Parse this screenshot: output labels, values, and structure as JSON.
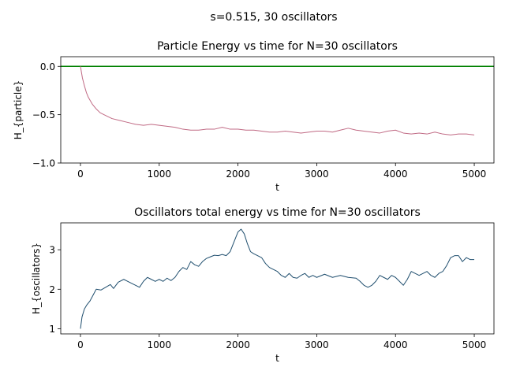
{
  "figure": {
    "suptitle": "s=0.515, 30 oscillators"
  },
  "chart_data": [
    {
      "type": "line",
      "title": "Particle Energy vs time for N=30 oscillators",
      "xlabel": "t",
      "ylabel": "H_{particle}",
      "xlim": [
        -250,
        5250
      ],
      "ylim": [
        -1.0,
        0.1
      ],
      "xticks": [
        0,
        1000,
        2000,
        3000,
        4000,
        5000
      ],
      "yticks": [
        -1.0,
        -0.5,
        0.0
      ],
      "ytick_labels": [
        "−1.0",
        "−0.5",
        "0.0"
      ],
      "grid": false,
      "reference_line": {
        "y": 0.0,
        "color": "#008000"
      },
      "series": [
        {
          "color": "#c06a84",
          "x": [
            0,
            25,
            50,
            75,
            100,
            150,
            200,
            250,
            300,
            400,
            500,
            600,
            700,
            800,
            900,
            1000,
            1100,
            1200,
            1300,
            1400,
            1500,
            1600,
            1700,
            1800,
            1900,
            2000,
            2100,
            2200,
            2300,
            2400,
            2500,
            2600,
            2700,
            2800,
            2900,
            3000,
            3100,
            3200,
            3300,
            3400,
            3500,
            3600,
            3700,
            3800,
            3900,
            4000,
            4100,
            4200,
            4300,
            4400,
            4500,
            4600,
            4700,
            4800,
            4900,
            5000
          ],
          "y": [
            0.0,
            -0.12,
            -0.2,
            -0.27,
            -0.32,
            -0.39,
            -0.44,
            -0.48,
            -0.5,
            -0.54,
            -0.56,
            -0.58,
            -0.6,
            -0.61,
            -0.6,
            -0.61,
            -0.62,
            -0.63,
            -0.65,
            -0.66,
            -0.66,
            -0.65,
            -0.65,
            -0.63,
            -0.65,
            -0.65,
            -0.66,
            -0.66,
            -0.67,
            -0.68,
            -0.68,
            -0.67,
            -0.68,
            -0.69,
            -0.68,
            -0.67,
            -0.67,
            -0.68,
            -0.66,
            -0.64,
            -0.66,
            -0.67,
            -0.68,
            -0.69,
            -0.67,
            -0.66,
            -0.69,
            -0.7,
            -0.69,
            -0.7,
            -0.68,
            -0.7,
            -0.71,
            -0.7,
            -0.7,
            -0.71
          ]
        }
      ]
    },
    {
      "type": "line",
      "title": "Oscillators total energy vs time for N=30 oscillators",
      "xlabel": "t",
      "ylabel": "H_{oscillators}",
      "xlim": [
        -250,
        5250
      ],
      "ylim": [
        0.87,
        3.68
      ],
      "xticks": [
        0,
        1000,
        2000,
        3000,
        4000,
        5000
      ],
      "yticks": [
        1,
        2,
        3
      ],
      "grid": false,
      "series": [
        {
          "color": "#1f4e6e",
          "x": [
            0,
            20,
            50,
            80,
            120,
            160,
            200,
            260,
            320,
            380,
            420,
            480,
            550,
            600,
            650,
            700,
            750,
            800,
            850,
            900,
            950,
            1000,
            1050,
            1100,
            1150,
            1200,
            1250,
            1300,
            1350,
            1400,
            1450,
            1500,
            1550,
            1600,
            1650,
            1700,
            1750,
            1800,
            1850,
            1900,
            1950,
            2000,
            2040,
            2080,
            2120,
            2160,
            2200,
            2250,
            2300,
            2350,
            2400,
            2450,
            2500,
            2550,
            2600,
            2650,
            2700,
            2750,
            2800,
            2850,
            2900,
            2950,
            3000,
            3100,
            3200,
            3300,
            3400,
            3500,
            3550,
            3600,
            3650,
            3700,
            3750,
            3800,
            3850,
            3900,
            3950,
            4000,
            4050,
            4100,
            4150,
            4200,
            4250,
            4300,
            4350,
            4400,
            4450,
            4500,
            4550,
            4600,
            4650,
            4700,
            4750,
            4800,
            4850,
            4900,
            4950,
            5000
          ],
          "y": [
            1.0,
            1.3,
            1.5,
            1.6,
            1.7,
            1.85,
            2.0,
            1.98,
            2.05,
            2.12,
            2.02,
            2.18,
            2.25,
            2.2,
            2.15,
            2.1,
            2.05,
            2.2,
            2.3,
            2.25,
            2.2,
            2.25,
            2.2,
            2.28,
            2.22,
            2.3,
            2.45,
            2.55,
            2.5,
            2.7,
            2.62,
            2.58,
            2.7,
            2.78,
            2.82,
            2.86,
            2.85,
            2.88,
            2.85,
            2.95,
            3.2,
            3.45,
            3.52,
            3.4,
            3.15,
            2.95,
            2.9,
            2.85,
            2.8,
            2.65,
            2.55,
            2.5,
            2.45,
            2.35,
            2.3,
            2.4,
            2.3,
            2.28,
            2.35,
            2.4,
            2.3,
            2.35,
            2.3,
            2.38,
            2.3,
            2.35,
            2.3,
            2.28,
            2.2,
            2.1,
            2.05,
            2.1,
            2.2,
            2.35,
            2.3,
            2.25,
            2.35,
            2.3,
            2.2,
            2.1,
            2.25,
            2.45,
            2.4,
            2.35,
            2.4,
            2.45,
            2.35,
            2.3,
            2.4,
            2.45,
            2.6,
            2.8,
            2.85,
            2.85,
            2.7,
            2.8,
            2.75,
            2.75
          ]
        }
      ]
    }
  ]
}
